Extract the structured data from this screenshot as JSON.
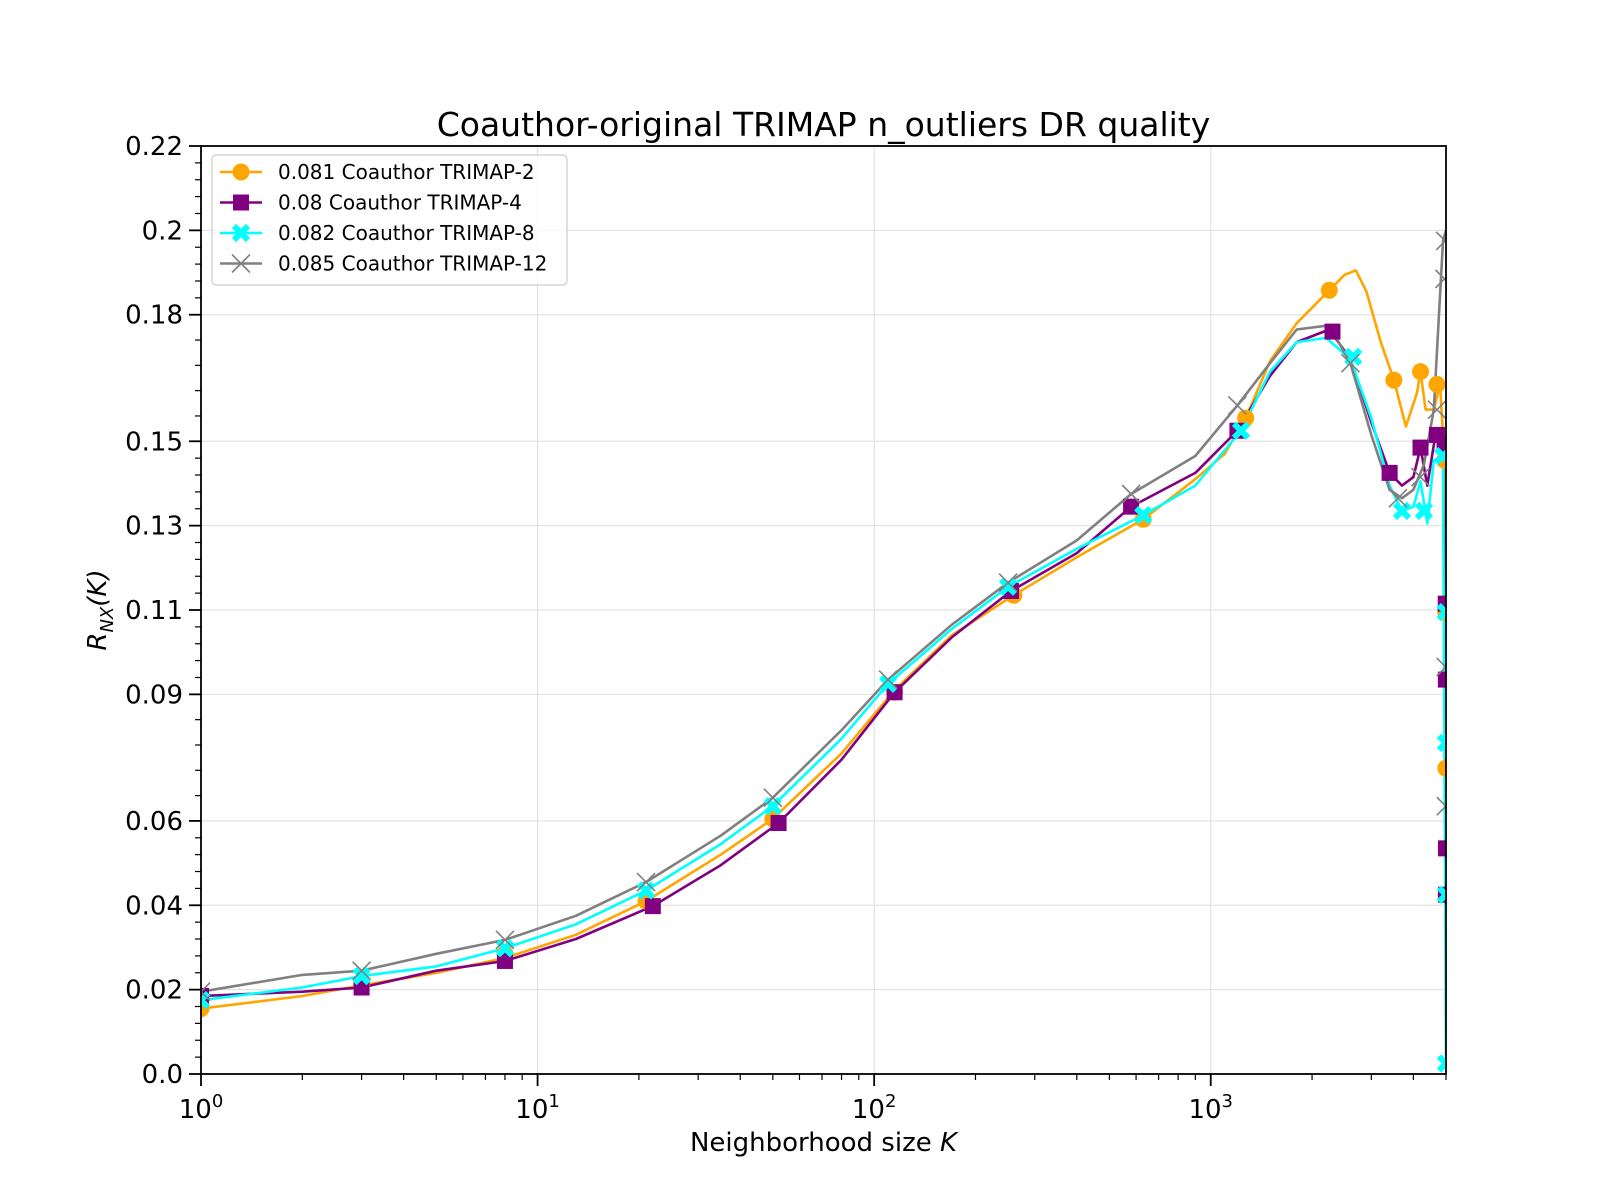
{
  "chart_data": {
    "type": "line",
    "title": "Coauthor-original TRIMAP n_outliers DR quality",
    "xlabel_text": "Neighborhood size ",
    "xlabel_var": "K",
    "ylabel_main": "R",
    "ylabel_sub": "NX",
    "ylabel_arg": "(K)",
    "xscale": "log",
    "xlim": [
      1,
      5000
    ],
    "ylim": [
      0,
      0.2
    ],
    "yticks": [
      {
        "value": 0.0,
        "label": "0.0"
      },
      {
        "value": 0.02,
        "label": "0.02"
      },
      {
        "value": 0.04,
        "label": "0.04"
      },
      {
        "value": 0.06,
        "label": "0.06"
      },
      {
        "value": 0.09,
        "label": "0.09"
      },
      {
        "value": 0.11,
        "label": "0.11"
      },
      {
        "value": 0.13,
        "label": "0.13"
      },
      {
        "value": 0.15,
        "label": "0.15"
      },
      {
        "value": 0.18,
        "label": "0.18"
      },
      {
        "value": 0.2,
        "label": "0.2"
      },
      {
        "value": 0.22,
        "label": "0.22"
      }
    ],
    "xticks": [
      {
        "value": 1,
        "base": "10",
        "exp": "0"
      },
      {
        "value": 10,
        "base": "10",
        "exp": "1"
      },
      {
        "value": 100,
        "base": "10",
        "exp": "2"
      },
      {
        "value": 1000,
        "base": "10",
        "exp": "3"
      }
    ],
    "grid": true,
    "legend_position": "top-left",
    "series": [
      {
        "name": "0.081 Coauthor TRIMAP-2",
        "color": "#ffa500",
        "marker": "circle",
        "points": [
          [
            1,
            0.0155
          ],
          [
            2,
            0.0185
          ],
          [
            3,
            0.021
          ],
          [
            5,
            0.024
          ],
          [
            8,
            0.0275
          ],
          [
            13,
            0.033
          ],
          [
            21,
            0.041
          ],
          [
            35,
            0.052
          ],
          [
            50,
            0.0605
          ],
          [
            80,
            0.076
          ],
          [
            115,
            0.091
          ],
          [
            170,
            0.104
          ],
          [
            260,
            0.1135
          ],
          [
            400,
            0.1225
          ],
          [
            630,
            0.1315
          ],
          [
            900,
            0.141
          ],
          [
            1100,
            0.147
          ],
          [
            1270,
            0.1555
          ],
          [
            1500,
            0.169
          ],
          [
            1800,
            0.178
          ],
          [
            2250,
            0.1858
          ],
          [
            2500,
            0.1895
          ],
          [
            2700,
            0.1905
          ],
          [
            2900,
            0.1855
          ],
          [
            3200,
            0.1735
          ],
          [
            3500,
            0.1645
          ],
          [
            3800,
            0.1535
          ],
          [
            4100,
            0.1615
          ],
          [
            4200,
            0.1665
          ],
          [
            4350,
            0.1575
          ],
          [
            4600,
            0.1575
          ],
          [
            4800,
            0.1635
          ],
          [
            4950,
            0.1455
          ],
          [
            5000,
            0.04
          ]
        ],
        "marker_points": [
          [
            1,
            0.0155
          ],
          [
            3,
            0.0212
          ],
          [
            8,
            0.0285
          ],
          [
            21,
            0.041
          ],
          [
            50,
            0.0605
          ],
          [
            115,
            0.0905
          ],
          [
            260,
            0.1135
          ],
          [
            630,
            0.1315
          ],
          [
            1270,
            0.1555
          ],
          [
            2250,
            0.1858
          ],
          [
            3500,
            0.1645
          ],
          [
            4200,
            0.1665
          ],
          [
            4700,
            0.1635
          ],
          [
            4950,
            0.1455
          ],
          [
            4990,
            0.1095
          ],
          [
            4995,
            0.0725
          ],
          [
            5000,
            0.0425
          ]
        ]
      },
      {
        "name": "0.08 Coauthor TRIMAP-4",
        "color": "#800080",
        "marker": "square",
        "points": [
          [
            1,
            0.0185
          ],
          [
            2,
            0.0195
          ],
          [
            3,
            0.0205
          ],
          [
            5,
            0.0245
          ],
          [
            8,
            0.0268
          ],
          [
            13,
            0.032
          ],
          [
            22,
            0.0398
          ],
          [
            35,
            0.0495
          ],
          [
            52,
            0.0595
          ],
          [
            80,
            0.0745
          ],
          [
            115,
            0.0905
          ],
          [
            170,
            0.1035
          ],
          [
            255,
            0.1145
          ],
          [
            400,
            0.1235
          ],
          [
            580,
            0.1345
          ],
          [
            900,
            0.1425
          ],
          [
            1200,
            0.1525
          ],
          [
            1500,
            0.1655
          ],
          [
            1800,
            0.1735
          ],
          [
            2250,
            0.1765
          ],
          [
            2600,
            0.1695
          ],
          [
            3000,
            0.1545
          ],
          [
            3400,
            0.1425
          ],
          [
            3700,
            0.1395
          ],
          [
            4000,
            0.1415
          ],
          [
            4200,
            0.1485
          ],
          [
            4400,
            0.1395
          ],
          [
            4650,
            0.1515
          ],
          [
            4900,
            0.1525
          ],
          [
            5000,
            0.04
          ]
        ],
        "marker_points": [
          [
            1,
            0.0185
          ],
          [
            3,
            0.0205
          ],
          [
            8,
            0.0268
          ],
          [
            22,
            0.0398
          ],
          [
            52,
            0.0595
          ],
          [
            115,
            0.0905
          ],
          [
            255,
            0.1145
          ],
          [
            580,
            0.1345
          ],
          [
            1200,
            0.1525
          ],
          [
            2300,
            0.176
          ],
          [
            3400,
            0.1425
          ],
          [
            4200,
            0.1485
          ],
          [
            4700,
            0.1515
          ],
          [
            4950,
            0.1495
          ],
          [
            4990,
            0.1115
          ],
          [
            4995,
            0.0935
          ],
          [
            4998,
            0.0535
          ],
          [
            5000,
            0.0425
          ]
        ]
      },
      {
        "name": "0.082 Coauthor TRIMAP-8",
        "color": "#00ffff",
        "marker": "x-fat",
        "points": [
          [
            1,
            0.0175
          ],
          [
            2,
            0.0205
          ],
          [
            3,
            0.0232
          ],
          [
            5,
            0.0255
          ],
          [
            8,
            0.0298
          ],
          [
            13,
            0.0355
          ],
          [
            21,
            0.0435
          ],
          [
            35,
            0.0545
          ],
          [
            50,
            0.0635
          ],
          [
            80,
            0.0795
          ],
          [
            110,
            0.0925
          ],
          [
            170,
            0.1055
          ],
          [
            250,
            0.1155
          ],
          [
            400,
            0.1245
          ],
          [
            630,
            0.1325
          ],
          [
            900,
            0.1395
          ],
          [
            1230,
            0.1525
          ],
          [
            1500,
            0.1665
          ],
          [
            1800,
            0.1735
          ],
          [
            2200,
            0.1745
          ],
          [
            2600,
            0.1695
          ],
          [
            3000,
            0.1555
          ],
          [
            3400,
            0.1395
          ],
          [
            3700,
            0.1335
          ],
          [
            4000,
            0.1345
          ],
          [
            4200,
            0.1405
          ],
          [
            4400,
            0.1305
          ],
          [
            4600,
            0.1455
          ],
          [
            4900,
            0.1465
          ],
          [
            5000,
            0.0025
          ]
        ],
        "marker_points": [
          [
            1,
            0.0175
          ],
          [
            3,
            0.0232
          ],
          [
            8,
            0.0298
          ],
          [
            21,
            0.0435
          ],
          [
            50,
            0.0635
          ],
          [
            110,
            0.0925
          ],
          [
            250,
            0.1155
          ],
          [
            630,
            0.1325
          ],
          [
            1230,
            0.1525
          ],
          [
            2650,
            0.17
          ],
          [
            3700,
            0.1335
          ],
          [
            4300,
            0.1335
          ],
          [
            4900,
            0.1465
          ],
          [
            4990,
            0.1095
          ],
          [
            4995,
            0.0785
          ],
          [
            4998,
            0.0425
          ],
          [
            5000,
            0.0025
          ]
        ]
      },
      {
        "name": "0.085 Coauthor TRIMAP-12",
        "color": "#808080",
        "marker": "x-thin",
        "points": [
          [
            1,
            0.0195
          ],
          [
            2,
            0.0235
          ],
          [
            3,
            0.0245
          ],
          [
            5,
            0.0285
          ],
          [
            8,
            0.0318
          ],
          [
            13,
            0.0375
          ],
          [
            21,
            0.0455
          ],
          [
            35,
            0.0565
          ],
          [
            50,
            0.0655
          ],
          [
            80,
            0.0815
          ],
          [
            110,
            0.0935
          ],
          [
            170,
            0.1065
          ],
          [
            250,
            0.1165
          ],
          [
            400,
            0.1265
          ],
          [
            580,
            0.1375
          ],
          [
            900,
            0.1465
          ],
          [
            1200,
            0.1585
          ],
          [
            1500,
            0.1685
          ],
          [
            1800,
            0.1765
          ],
          [
            2250,
            0.1775
          ],
          [
            2600,
            0.1685
          ],
          [
            3000,
            0.1515
          ],
          [
            3400,
            0.1385
          ],
          [
            3700,
            0.1365
          ],
          [
            4000,
            0.1385
          ],
          [
            4300,
            0.1445
          ],
          [
            4600,
            0.1575
          ],
          [
            4900,
            0.1975
          ],
          [
            5000,
            0.2
          ]
        ],
        "marker_points": [
          [
            1,
            0.0195
          ],
          [
            3,
            0.0245
          ],
          [
            8,
            0.0318
          ],
          [
            21,
            0.0455
          ],
          [
            50,
            0.0655
          ],
          [
            110,
            0.0935
          ],
          [
            250,
            0.1165
          ],
          [
            580,
            0.1375
          ],
          [
            1200,
            0.1585
          ],
          [
            2600,
            0.1685
          ],
          [
            3600,
            0.1365
          ],
          [
            4200,
            0.1415
          ],
          [
            4700,
            0.1575
          ],
          [
            4950,
            0.1885
          ],
          [
            4975,
            0.1975
          ],
          [
            4990,
            0.0965
          ],
          [
            4995,
            0.0635
          ]
        ]
      }
    ]
  }
}
